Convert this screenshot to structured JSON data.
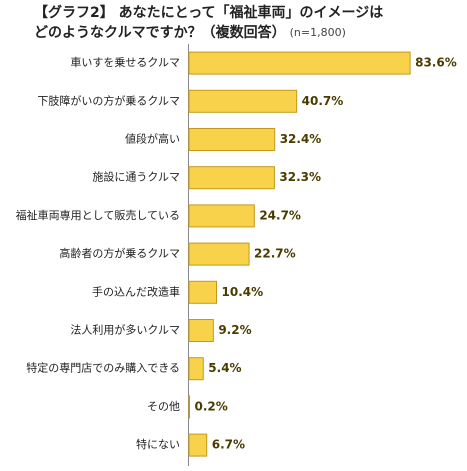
{
  "chart_data": {
    "type": "bar",
    "orientation": "horizontal",
    "title_lines": [
      "【グラフ2】 あなたにとって「福祉車両」のイメージは",
      "どのようなクルマですか？（複数回答）"
    ],
    "note": "(n=1,800)",
    "categories": [
      "車いすを乗せるクルマ",
      "下肢障がいの方が乗るクルマ",
      "値段が高い",
      "施設に通うクルマ",
      "福祉車両専用として販売している",
      "高齢者の方が乗るクルマ",
      "手の込んだ改造車",
      "法人利用が多いクルマ",
      "特定の専門店でのみ購入できる",
      "その他",
      "特にない"
    ],
    "values": [
      83.6,
      40.7,
      32.4,
      32.3,
      24.7,
      22.7,
      10.4,
      9.2,
      5.4,
      0.2,
      6.7
    ],
    "value_labels": [
      "83.6%",
      "40.7%",
      "32.4%",
      "32.3%",
      "24.7%",
      "22.7%",
      "10.4%",
      "9.2%",
      "5.4%",
      "0.2%",
      "6.7%"
    ],
    "color": "#f8d24a",
    "border_color": "#c49a1c",
    "label_color": "#4a3c00"
  }
}
